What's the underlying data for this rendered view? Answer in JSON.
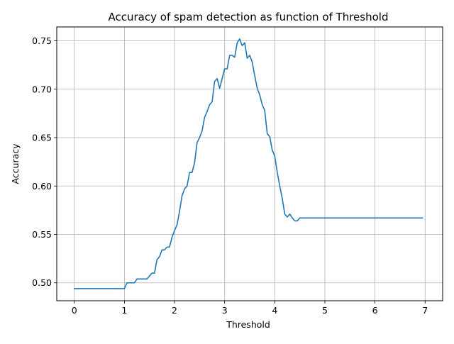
{
  "chart_data": {
    "type": "line",
    "title": "Accuracy of spam detection as function of Threshold",
    "xlabel": "Threshold",
    "ylabel": "Accuracy",
    "xlim": [
      -0.35,
      7.35
    ],
    "ylim": [
      0.4815,
      0.7643
    ],
    "grid": true,
    "line_color": "#1f77b4",
    "xticks": [
      0,
      1,
      2,
      3,
      4,
      5,
      6,
      7
    ],
    "xtick_labels": [
      "0",
      "1",
      "2",
      "3",
      "4",
      "5",
      "6",
      "7"
    ],
    "yticks": [
      0.5,
      0.55,
      0.6,
      0.65,
      0.7,
      0.75
    ],
    "ytick_labels": [
      "0.50",
      "0.55",
      "0.60",
      "0.65",
      "0.70",
      "0.75"
    ],
    "series": [
      {
        "x": [
          0.0,
          0.5,
          1.0,
          1.05,
          1.2,
          1.25,
          1.45,
          1.55,
          1.6,
          1.65,
          1.7,
          1.75,
          1.8,
          1.85,
          1.9,
          1.95,
          2.0,
          2.05,
          2.1,
          2.15,
          2.2,
          2.25,
          2.3,
          2.35,
          2.4,
          2.45,
          2.5,
          2.55,
          2.6,
          2.65,
          2.7,
          2.75,
          2.8,
          2.85,
          2.9,
          2.95,
          3.0,
          3.05,
          3.1,
          3.15,
          3.2,
          3.25,
          3.3,
          3.35,
          3.4,
          3.45,
          3.5,
          3.55,
          3.6,
          3.65,
          3.7,
          3.75,
          3.8,
          3.85,
          3.9,
          3.95,
          4.0,
          4.05,
          4.1,
          4.15,
          4.2,
          4.25,
          4.3,
          4.35,
          4.4,
          4.45,
          4.5,
          5.0,
          6.0,
          6.95
        ],
        "values": [
          0.494,
          0.494,
          0.494,
          0.5,
          0.5,
          0.504,
          0.504,
          0.51,
          0.51,
          0.524,
          0.527,
          0.534,
          0.534,
          0.537,
          0.537,
          0.547,
          0.554,
          0.56,
          0.574,
          0.59,
          0.597,
          0.6,
          0.614,
          0.614,
          0.624,
          0.645,
          0.65,
          0.657,
          0.671,
          0.677,
          0.684,
          0.687,
          0.708,
          0.711,
          0.701,
          0.711,
          0.721,
          0.721,
          0.735,
          0.735,
          0.733,
          0.748,
          0.752,
          0.745,
          0.748,
          0.732,
          0.735,
          0.728,
          0.714,
          0.701,
          0.694,
          0.684,
          0.678,
          0.654,
          0.651,
          0.637,
          0.631,
          0.614,
          0.6,
          0.587,
          0.571,
          0.568,
          0.571,
          0.567,
          0.564,
          0.564,
          0.567,
          0.567,
          0.567,
          0.567
        ]
      }
    ]
  }
}
